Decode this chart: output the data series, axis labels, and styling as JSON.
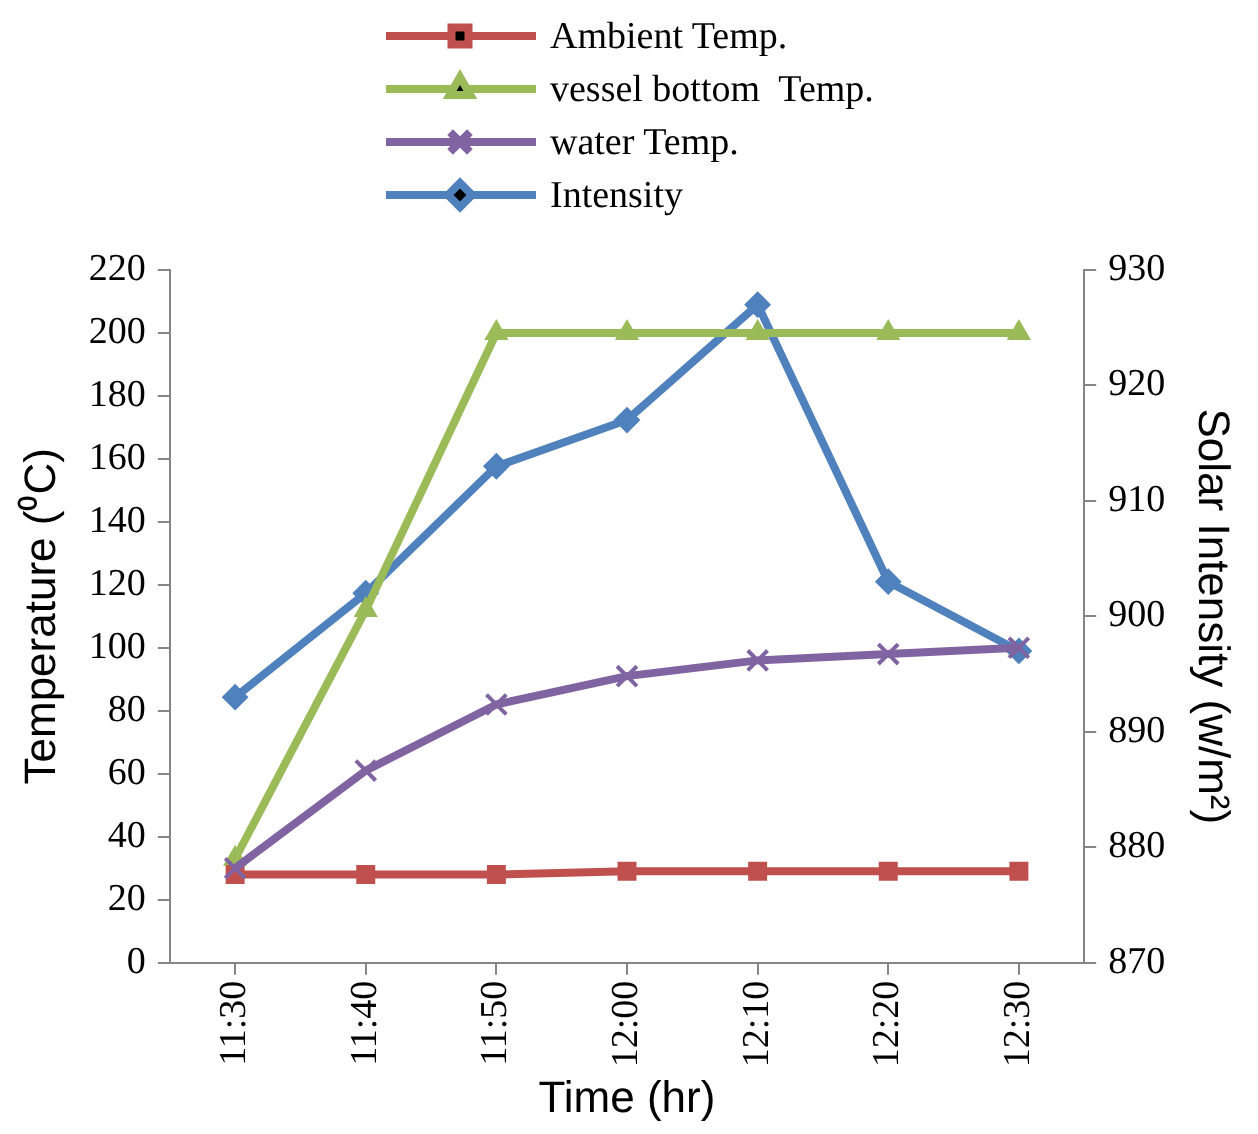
{
  "chart_data": {
    "type": "line",
    "xlabel": "Time (hr)",
    "ylabel": "Temperature (⁰C)",
    "y2label": "Solar Intensity (w/m²)",
    "categories": [
      "11:30",
      "11:40",
      "11:50",
      "12:00",
      "12:10",
      "12:20",
      "12:30"
    ],
    "series": [
      {
        "name": "Ambient Temp.",
        "color": "#c0504d",
        "marker": "square",
        "values": [
          28,
          28,
          28,
          29,
          29,
          29,
          29
        ]
      },
      {
        "name": "vessel bottom  Temp.",
        "color": "#9bbb59",
        "marker": "triangle",
        "values": [
          33,
          112,
          200,
          200,
          200,
          200,
          200
        ]
      },
      {
        "name": "water Temp.",
        "color": "#8064a2",
        "marker": "cross",
        "values": [
          30,
          61,
          82,
          91,
          96,
          98,
          100
        ]
      },
      {
        "name": "Intensity",
        "color": "#4f81bd",
        "marker": "diamond",
        "axis": "y2",
        "values": [
          893,
          902,
          913,
          917,
          927,
          903,
          897
        ]
      }
    ],
    "ylim": [
      0,
      220
    ],
    "yticks": [
      0,
      20,
      40,
      60,
      80,
      100,
      120,
      140,
      160,
      180,
      200,
      220
    ],
    "y2lim": [
      870,
      930
    ],
    "y2ticks": [
      870,
      880,
      890,
      900,
      910,
      920,
      930
    ],
    "grid": false,
    "legend": "top",
    "line_style": "solid"
  }
}
